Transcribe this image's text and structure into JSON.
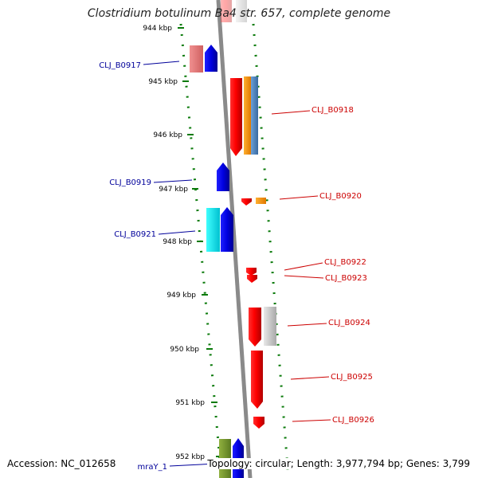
{
  "title": "Clostridium botulinum Ba4 str. 657, complete genome",
  "accession": "Accession: NC_012658",
  "topology": "Topology: circular; Length: 3,977,794 bp; Genes: 3,799",
  "colors": {
    "forward_label": "#00009a",
    "reverse_label": "#cc0000",
    "ticks": "#0a7a0a",
    "axis": "#8a8a8a"
  },
  "scale_ticks": [
    "944 kbp",
    "945 kbp",
    "946 kbp",
    "947 kbp",
    "948 kbp",
    "949 kbp",
    "950 kbp",
    "951 kbp",
    "952 kbp"
  ],
  "forward_genes": [
    {
      "id": "fwd-cl0917",
      "label": "CLJ_B0917"
    },
    {
      "id": "fwd-cl0919",
      "label": "CLJ_B0919"
    },
    {
      "id": "fwd-cl0921",
      "label": "CLJ_B0921"
    },
    {
      "id": "fwd-mray",
      "label": "mraY_1"
    }
  ],
  "reverse_genes": [
    {
      "id": "rev-cl0918",
      "label": "CLJ_B0918"
    },
    {
      "id": "rev-cl0920",
      "label": "CLJ_B0920"
    },
    {
      "id": "rev-cl0922",
      "label": "CLJ_B0922"
    },
    {
      "id": "rev-cl0923",
      "label": "CLJ_B0923"
    },
    {
      "id": "rev-cl0924",
      "label": "CLJ_B0924"
    },
    {
      "id": "rev-cl0925",
      "label": "CLJ_B0925"
    },
    {
      "id": "rev-cl0926",
      "label": "CLJ_B0926"
    }
  ]
}
